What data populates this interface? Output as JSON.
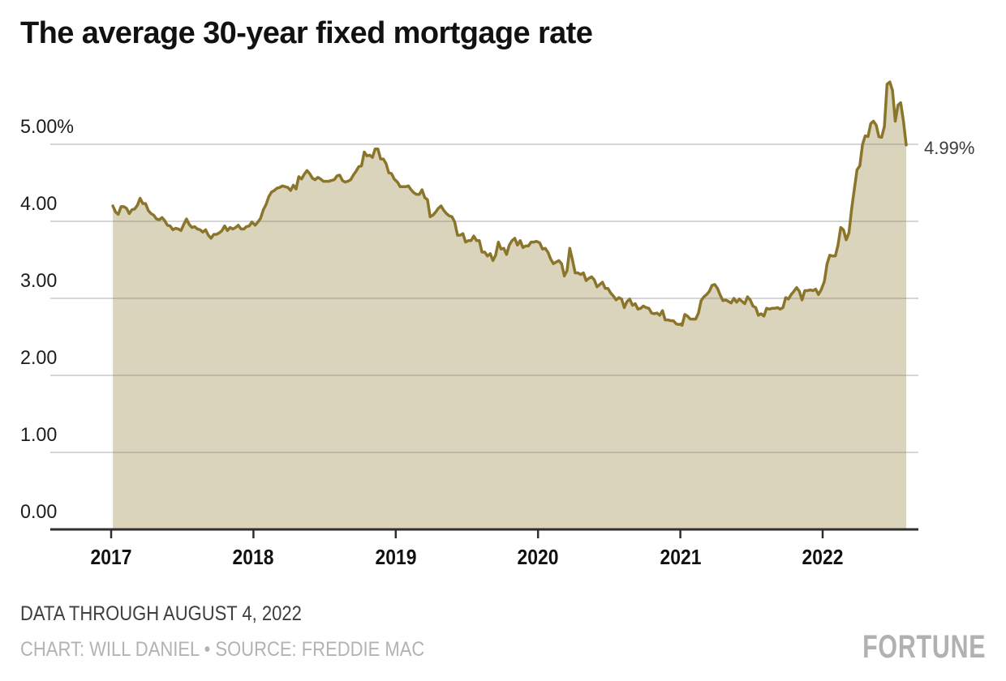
{
  "header": {
    "title": "The average 30-year fixed mortgage rate"
  },
  "footer": {
    "note": "DATA THROUGH AUGUST 4, 2022",
    "credit": "CHART: WILL DANIEL • SOURCE: FREDDIE MAC",
    "logo": "FORTUNE"
  },
  "colors": {
    "line": "#8a752b",
    "fill": "#dbd4bd",
    "grid": "rgba(120,120,120,0.40)",
    "axis": "#2f2f2f",
    "end_label": "#3c3c3c"
  },
  "chart_data": {
    "type": "area",
    "title": "The average 30-year fixed mortgage rate",
    "unit": "percent",
    "xlabel": "",
    "ylabel": "",
    "grid": "horizontal",
    "legend": "none",
    "xlim": [
      2016.57,
      2022.67
    ],
    "ylim": [
      0,
      6
    ],
    "x_ticks": [
      2017,
      2018,
      2019,
      2020,
      2021,
      2022
    ],
    "y_ticks": [
      {
        "value": 5,
        "label": "5.00%"
      },
      {
        "value": 4,
        "label": "4.00"
      },
      {
        "value": 3,
        "label": "3.00"
      },
      {
        "value": 2,
        "label": "2.00"
      },
      {
        "value": 1,
        "label": "1.00"
      },
      {
        "value": 0,
        "label": "0.00"
      }
    ],
    "end_annotation": {
      "label": "4.99%",
      "value": 4.99
    },
    "series": [
      {
        "name": "30-year fixed mortgage rate",
        "cadence": "weekly",
        "values_by_year": {
          "2017": [
            4.2,
            4.12,
            4.09,
            4.19,
            4.19,
            4.17,
            4.1,
            4.15,
            4.16,
            4.21,
            4.3,
            4.23,
            4.23,
            4.14,
            4.1,
            4.08,
            4.03,
            4.02,
            4.05,
            4.01,
            3.95,
            3.94,
            3.89,
            3.91,
            3.9,
            3.88,
            3.96,
            4.03,
            3.96,
            3.92,
            3.93,
            3.9,
            3.89,
            3.86,
            3.89,
            3.82,
            3.78,
            3.83,
            3.83,
            3.85,
            3.88,
            3.94,
            3.88,
            3.92,
            3.9,
            3.92,
            3.95,
            3.9,
            3.9,
            3.93,
            3.94,
            3.99
          ],
          "2018": [
            3.95,
            3.99,
            4.04,
            4.15,
            4.22,
            4.32,
            4.38,
            4.4,
            4.43,
            4.44,
            4.46,
            4.45,
            4.44,
            4.4,
            4.47,
            4.42,
            4.58,
            4.55,
            4.61,
            4.66,
            4.62,
            4.56,
            4.54,
            4.57,
            4.55,
            4.52,
            4.52,
            4.52,
            4.53,
            4.54,
            4.59,
            4.6,
            4.53,
            4.51,
            4.52,
            4.54,
            4.6,
            4.65,
            4.71,
            4.72,
            4.9,
            4.85,
            4.86,
            4.83,
            4.94,
            4.94,
            4.81,
            4.81,
            4.75,
            4.63,
            4.62,
            4.55
          ],
          "2019": [
            4.51,
            4.45,
            4.45,
            4.45,
            4.46,
            4.41,
            4.37,
            4.35,
            4.35,
            4.41,
            4.31,
            4.28,
            4.06,
            4.08,
            4.12,
            4.17,
            4.2,
            4.14,
            4.1,
            4.07,
            4.06,
            3.99,
            3.82,
            3.82,
            3.84,
            3.73,
            3.75,
            3.75,
            3.81,
            3.75,
            3.75,
            3.6,
            3.6,
            3.55,
            3.58,
            3.49,
            3.56,
            3.73,
            3.64,
            3.65,
            3.57,
            3.69,
            3.75,
            3.78,
            3.69,
            3.75,
            3.66,
            3.68,
            3.68,
            3.73,
            3.73,
            3.74
          ],
          "2020": [
            3.72,
            3.64,
            3.65,
            3.6,
            3.51,
            3.45,
            3.47,
            3.49,
            3.45,
            3.29,
            3.36,
            3.65,
            3.5,
            3.33,
            3.33,
            3.31,
            3.33,
            3.23,
            3.26,
            3.28,
            3.24,
            3.15,
            3.18,
            3.21,
            3.13,
            3.13,
            3.07,
            3.03,
            2.98,
            3.01,
            2.99,
            2.88,
            2.96,
            2.99,
            2.91,
            2.93,
            2.86,
            2.87,
            2.9,
            2.88,
            2.87,
            2.81,
            2.8,
            2.81,
            2.78,
            2.84,
            2.72,
            2.72,
            2.71,
            2.71,
            2.67,
            2.66,
            2.67
          ],
          "2021": [
            2.65,
            2.79,
            2.77,
            2.73,
            2.73,
            2.73,
            2.81,
            2.97,
            3.02,
            3.05,
            3.09,
            3.17,
            3.18,
            3.13,
            3.04,
            2.97,
            2.98,
            2.96,
            2.94,
            3.0,
            2.95,
            2.99,
            2.96,
            2.93,
            3.02,
            2.98,
            2.9,
            2.88,
            2.78,
            2.8,
            2.77,
            2.87,
            2.86,
            2.87,
            2.87,
            2.88,
            2.86,
            2.88,
            3.01,
            2.99,
            3.05,
            3.09,
            3.14,
            3.09,
            2.98,
            3.1,
            3.1,
            3.11,
            3.1,
            3.12,
            3.05,
            3.11
          ],
          "2022": [
            3.22,
            3.45,
            3.56,
            3.55,
            3.55,
            3.69,
            3.92,
            3.89,
            3.76,
            3.85,
            4.16,
            4.42,
            4.67,
            4.72,
            5.0,
            5.11,
            5.1,
            5.27,
            5.3,
            5.25,
            5.1,
            5.09,
            5.23,
            5.78,
            5.81,
            5.7,
            5.3,
            5.51,
            5.54,
            5.3,
            4.99
          ]
        }
      }
    ]
  }
}
